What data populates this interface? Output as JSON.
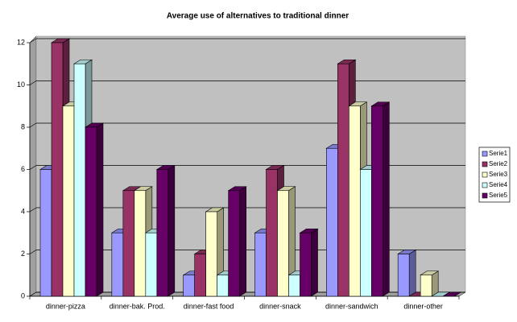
{
  "chart_data": {
    "type": "bar3d",
    "title": "Average use of alternatives to traditional dinner",
    "categories": [
      "dinner-pizza",
      "dinner-bak. Prod.",
      "dinner-fast food",
      "dinner-snack",
      "dinner-sandwich",
      "dinner-other"
    ],
    "series": [
      {
        "name": "Serie1",
        "color": "#9999ff",
        "values": [
          6,
          3,
          1,
          3,
          7,
          2
        ]
      },
      {
        "name": "Serie2",
        "color": "#993366",
        "values": [
          12,
          5,
          2,
          6,
          11,
          0
        ]
      },
      {
        "name": "Serie3",
        "color": "#ffffcc",
        "values": [
          9,
          5,
          4,
          5,
          9,
          1
        ]
      },
      {
        "name": "Serie4",
        "color": "#ccffff",
        "values": [
          11,
          3,
          1,
          1,
          6,
          0
        ]
      },
      {
        "name": "Serie5",
        "color": "#660066",
        "values": [
          8,
          6,
          5,
          3,
          9,
          0
        ]
      }
    ],
    "ylim": [
      0,
      12
    ],
    "yticks": [
      0,
      2,
      4,
      6,
      8,
      10,
      12
    ],
    "grid": true,
    "legend": "right"
  }
}
